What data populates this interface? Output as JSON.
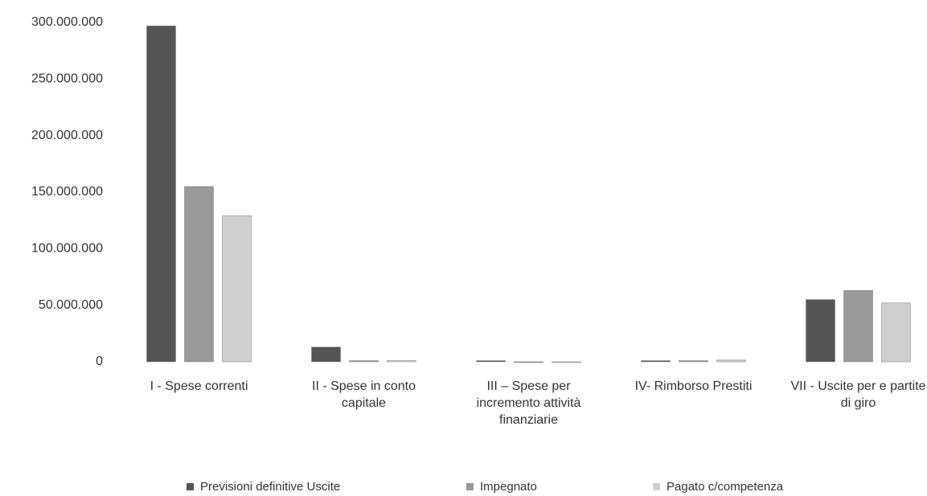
{
  "chart_data": {
    "type": "bar",
    "categories": [
      "I - Spese correnti",
      "II - Spese in conto capitale",
      "III – Spese per incremento attività finanziarie",
      "IV- Rimborso Prestiti",
      "VII - Uscite per e partite di giro"
    ],
    "series": [
      {
        "name": "Previsioni definitive Uscite",
        "color": "#555555",
        "values": [
          297000000,
          13000000,
          1000000,
          1000000,
          55000000
        ]
      },
      {
        "name": "Impegnato",
        "color": "#9a9a9a",
        "values": [
          155000000,
          1000000,
          0,
          1000000,
          63000000
        ]
      },
      {
        "name": "Pagato c/competenza",
        "color": "#cfcfcf",
        "values": [
          129000000,
          1000000,
          0,
          1500000,
          52000000
        ]
      }
    ],
    "ylim": [
      0,
      300000000
    ],
    "yticks": [
      0,
      {
        "value": 50000000,
        "label": "50.000.000"
      },
      {
        "value": 100000000,
        "label": "100.000.000"
      },
      {
        "value": 150000000,
        "label": "150.000.000"
      },
      {
        "value": 200000000,
        "label": "200.000.000"
      },
      {
        "value": 250000000,
        "label": "250.000.000"
      },
      {
        "value": 300000000,
        "label": "300.000.000"
      }
    ],
    "grid": false,
    "legend": "bottom"
  }
}
